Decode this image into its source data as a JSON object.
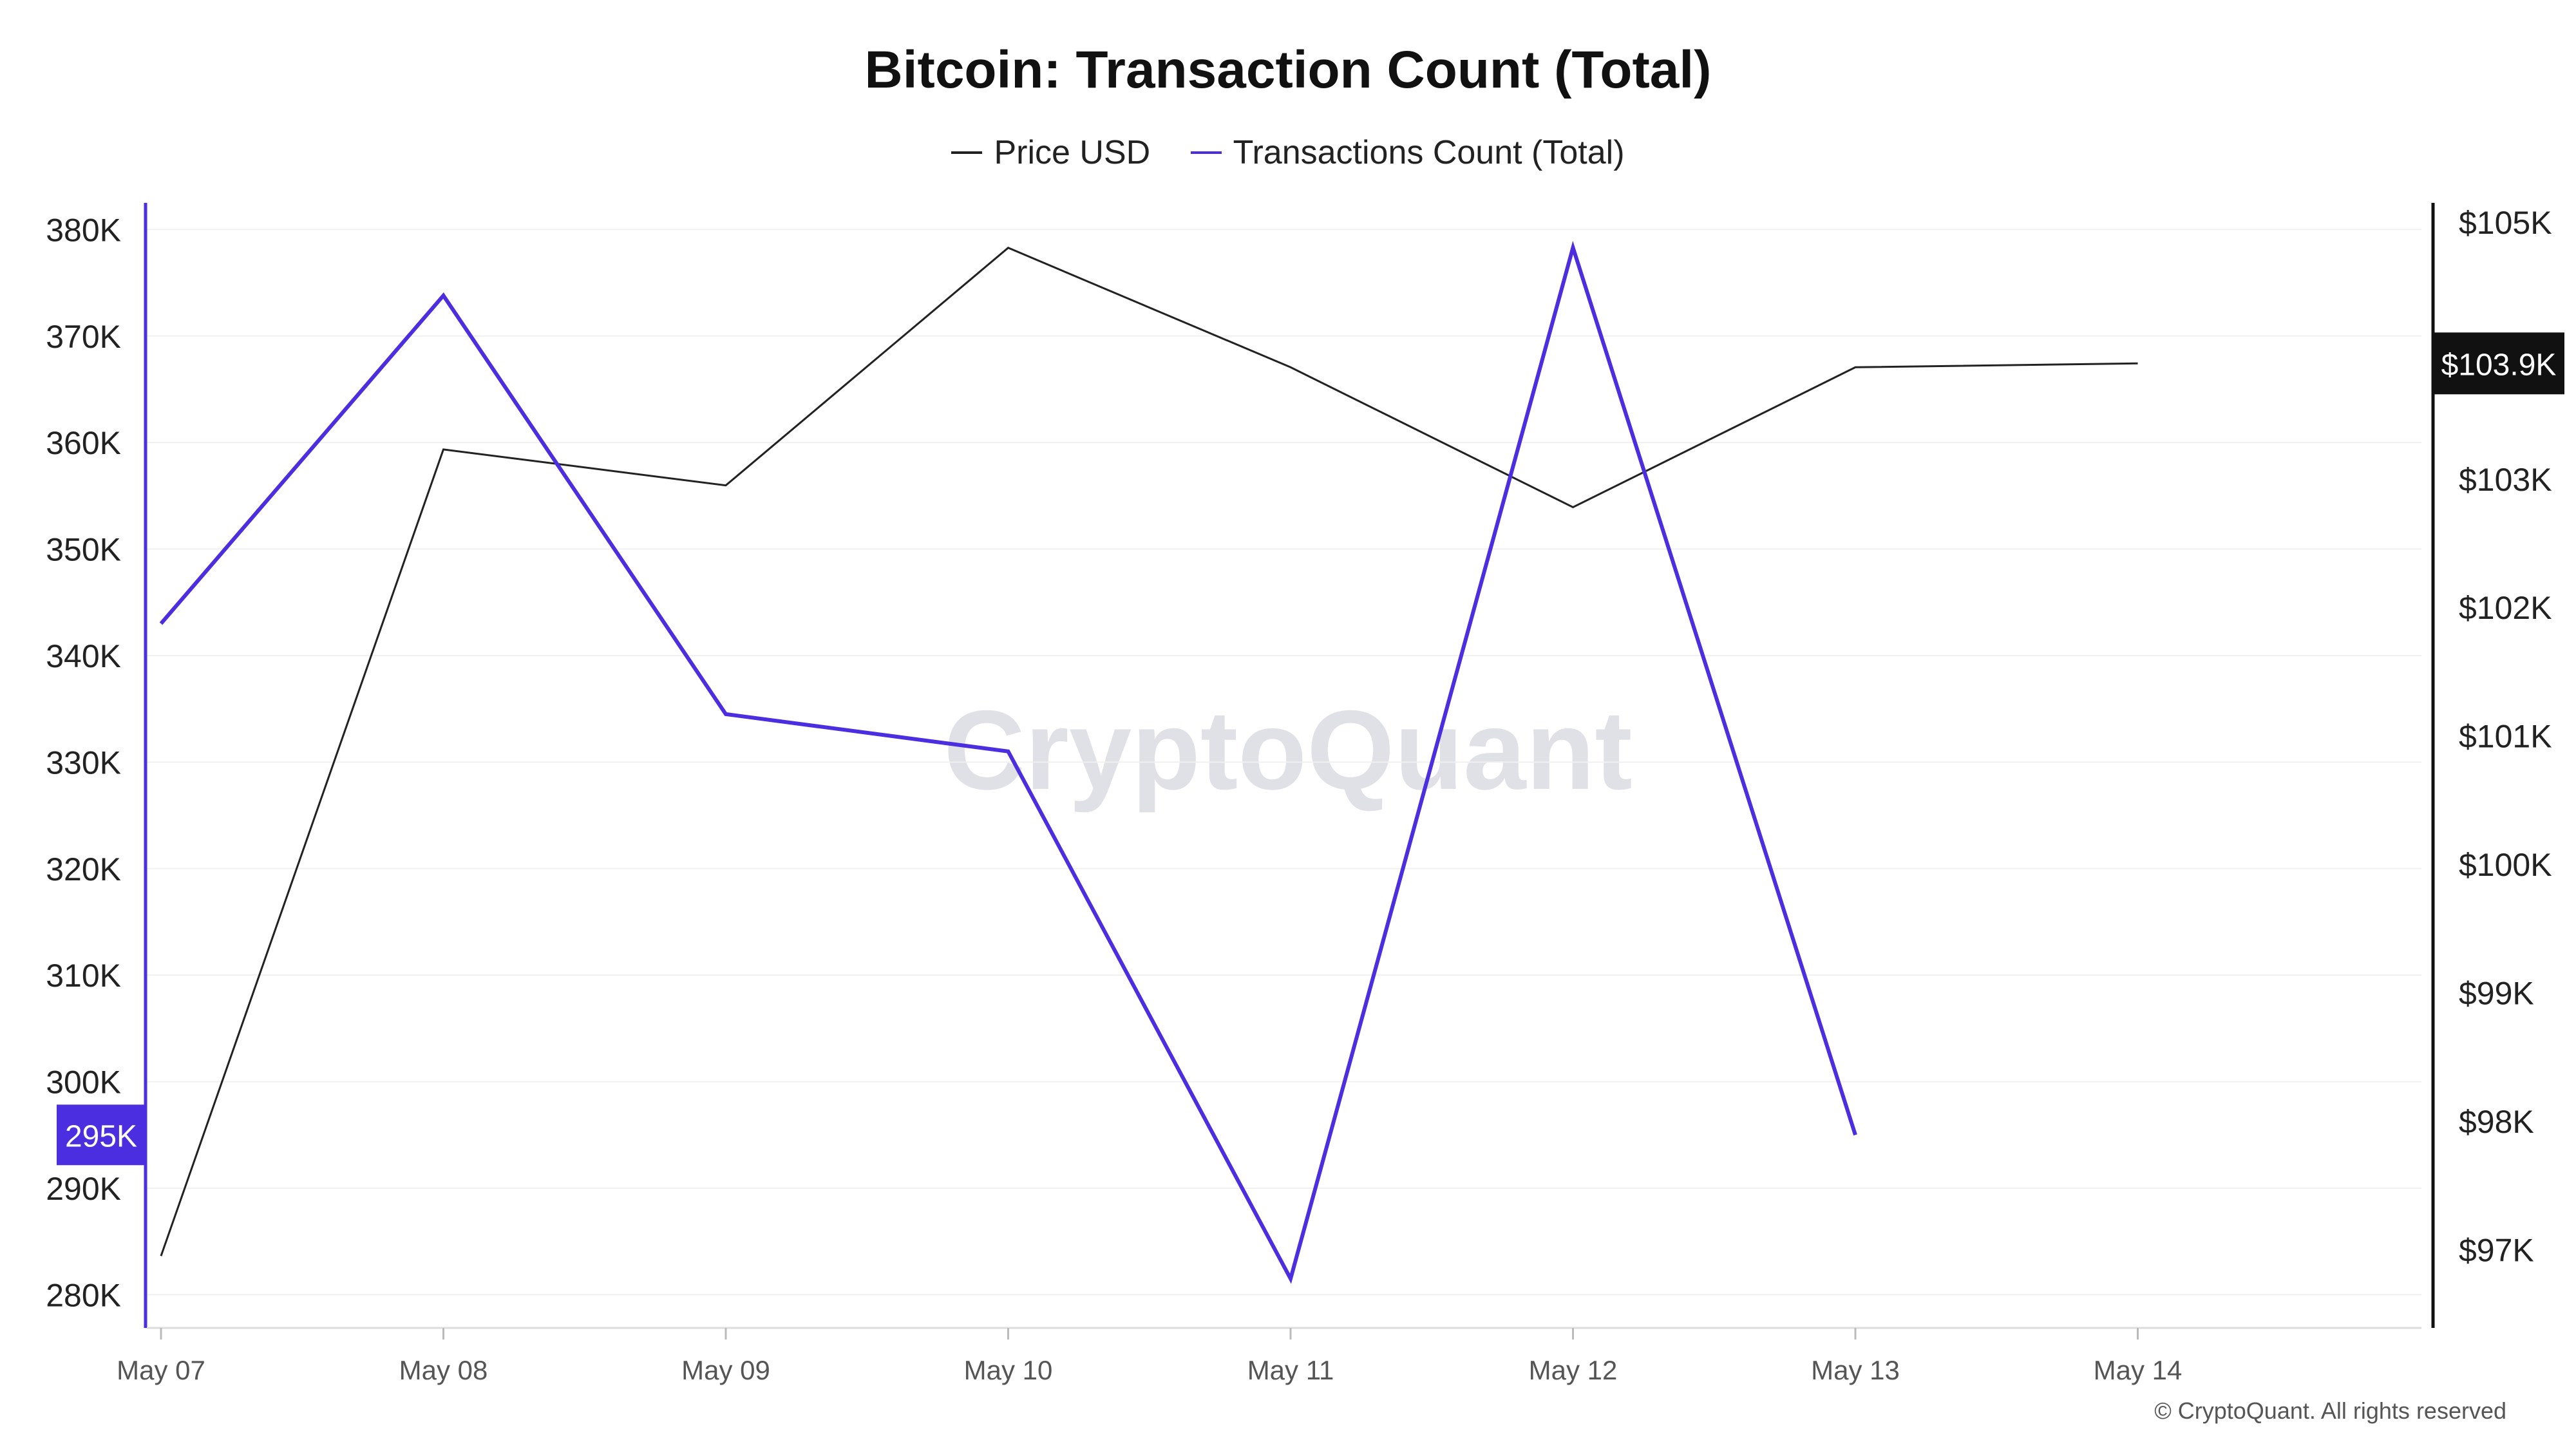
{
  "title": "Bitcoin: Transaction Count (Total)",
  "legend": [
    {
      "label": "Price USD",
      "color": "#222222"
    },
    {
      "label": "Transactions Count (Total)",
      "color": "#4a2ee0"
    }
  ],
  "watermark": "CryptoQuant",
  "copyright": "© CryptoQuant. All rights reserved",
  "chart_data": {
    "type": "line",
    "x": [
      "May 07",
      "May 08",
      "May 09",
      "May 10",
      "May 11",
      "May 12",
      "May 13",
      "May 14"
    ],
    "series": [
      {
        "name": "Transactions Count (Total)",
        "axis": "left",
        "color": "#4a2ee0",
        "values": [
          343000,
          373800,
          334500,
          331000,
          281500,
          378300,
          295000,
          null
        ]
      },
      {
        "name": "Price USD",
        "axis": "right",
        "color": "#222222",
        "values": [
          96950,
          103230,
          102950,
          104800,
          103870,
          102780,
          103870,
          103900
        ]
      }
    ],
    "left_axis": {
      "ticks": [
        "380K",
        "370K",
        "360K",
        "350K",
        "340K",
        "330K",
        "320K",
        "310K",
        "300K",
        "290K",
        "280K"
      ],
      "tick_values": [
        380000,
        370000,
        360000,
        350000,
        340000,
        330000,
        320000,
        310000,
        300000,
        290000,
        280000
      ],
      "ylim": [
        277000,
        382500
      ],
      "current_value_label": "295K",
      "current_value": 295000
    },
    "right_axis": {
      "ticks": [
        "$105K",
        "$103K",
        "$102K",
        "$101K",
        "$100K",
        "$99K",
        "$98K",
        "$97K"
      ],
      "tick_values": [
        105000,
        103000,
        102000,
        101000,
        100000,
        99000,
        98000,
        97000
      ],
      "ylim": [
        96400,
        105150
      ],
      "current_value_label": "$103.9K",
      "current_value": 103900
    },
    "grid": true
  }
}
